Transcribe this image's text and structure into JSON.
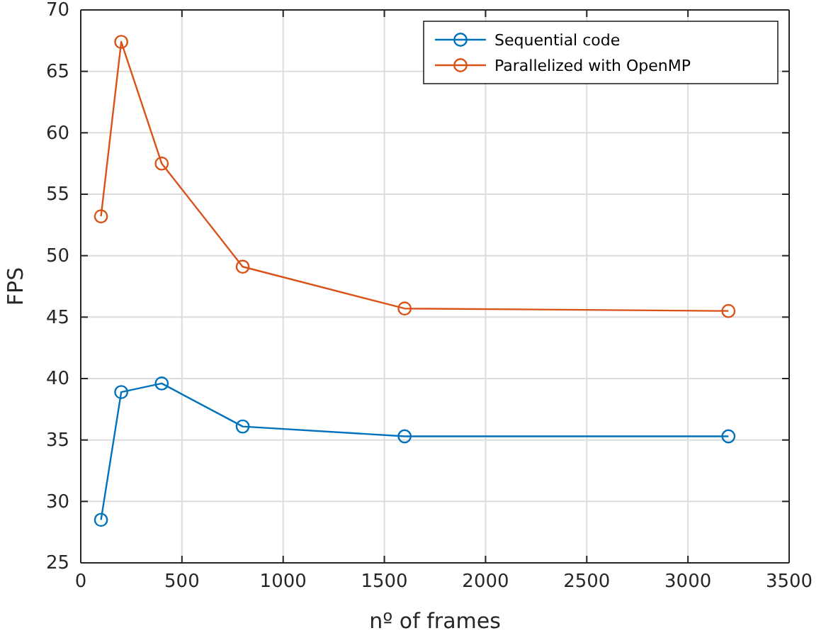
{
  "chart_data": {
    "type": "line",
    "xlabel": "nº of frames",
    "ylabel": "FPS",
    "x": [
      100,
      200,
      400,
      800,
      1600,
      3200
    ],
    "series": [
      {
        "name": "Sequential code",
        "color": "#0072bd",
        "values": [
          28.5,
          38.9,
          39.6,
          36.1,
          35.3,
          35.3
        ]
      },
      {
        "name": "Parallelized with OpenMP",
        "color": "#d95319",
        "values": [
          53.2,
          67.4,
          57.5,
          49.1,
          45.7,
          45.5
        ]
      }
    ],
    "xlim": [
      0,
      3500
    ],
    "xticks": [
      0,
      500,
      1000,
      1500,
      2000,
      2500,
      3000,
      3500
    ],
    "ylim": [
      25,
      70
    ],
    "yticks": [
      25,
      30,
      35,
      40,
      45,
      50,
      55,
      60,
      65,
      70
    ],
    "grid": true,
    "legend": "top right",
    "marker": "circle",
    "line_style": "solid"
  }
}
